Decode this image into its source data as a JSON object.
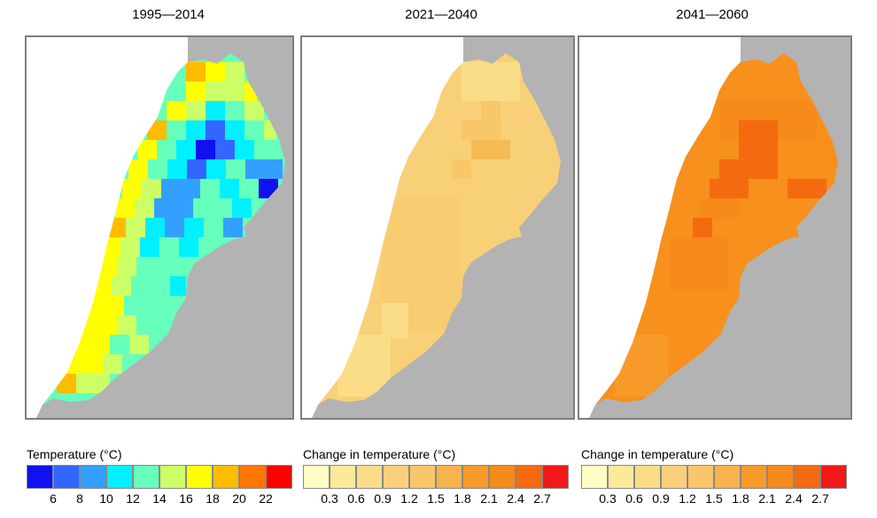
{
  "panels": [
    {
      "title": "1995—2014",
      "legend_title": "Temperature (°C)",
      "legend_colors": [
        "#1010f0",
        "#3366ff",
        "#33a0ff",
        "#00f0ff",
        "#66ffbb",
        "#ccff66",
        "#ffff00",
        "#ffbb00",
        "#ff7700",
        "#ff0000"
      ],
      "legend_ticks": [
        "6",
        "8",
        "10",
        "12",
        "14",
        "16",
        "18",
        "20",
        "22"
      ]
    },
    {
      "title": "2021—2040",
      "legend_title": "Change in temperature (°C)",
      "legend_colors": [
        "#ffffc4",
        "#fde99a",
        "#fbdd88",
        "#fad17a",
        "#f8c76a",
        "#f7b34c",
        "#f79a2a",
        "#f68a1a",
        "#f46a10",
        "#f21818"
      ],
      "legend_ticks": [
        "0.3",
        "0.6",
        "0.9",
        "1.2",
        "1.5",
        "1.8",
        "2.1",
        "2.4",
        "2.7"
      ]
    },
    {
      "title": "2041—2060",
      "legend_title": "Change in temperature (°C)",
      "legend_colors": [
        "#ffffc4",
        "#fde99a",
        "#fbdd88",
        "#fad17a",
        "#f8c76a",
        "#f7b34c",
        "#f79a2a",
        "#f68a1a",
        "#f46a10",
        "#f21818"
      ],
      "legend_ticks": [
        "0.3",
        "0.6",
        "0.9",
        "1.2",
        "1.5",
        "1.8",
        "2.1",
        "2.4",
        "2.7"
      ]
    }
  ],
  "colors": {
    "background_land": "#b3b3b3",
    "sea": "#ffffff",
    "frame_border": "#7d7d7d",
    "panel2_base": "#f8d077",
    "panel2_warm": "#f5bb55",
    "panel3_base": "#f7901c",
    "panel3_warm": "#f46a10"
  }
}
